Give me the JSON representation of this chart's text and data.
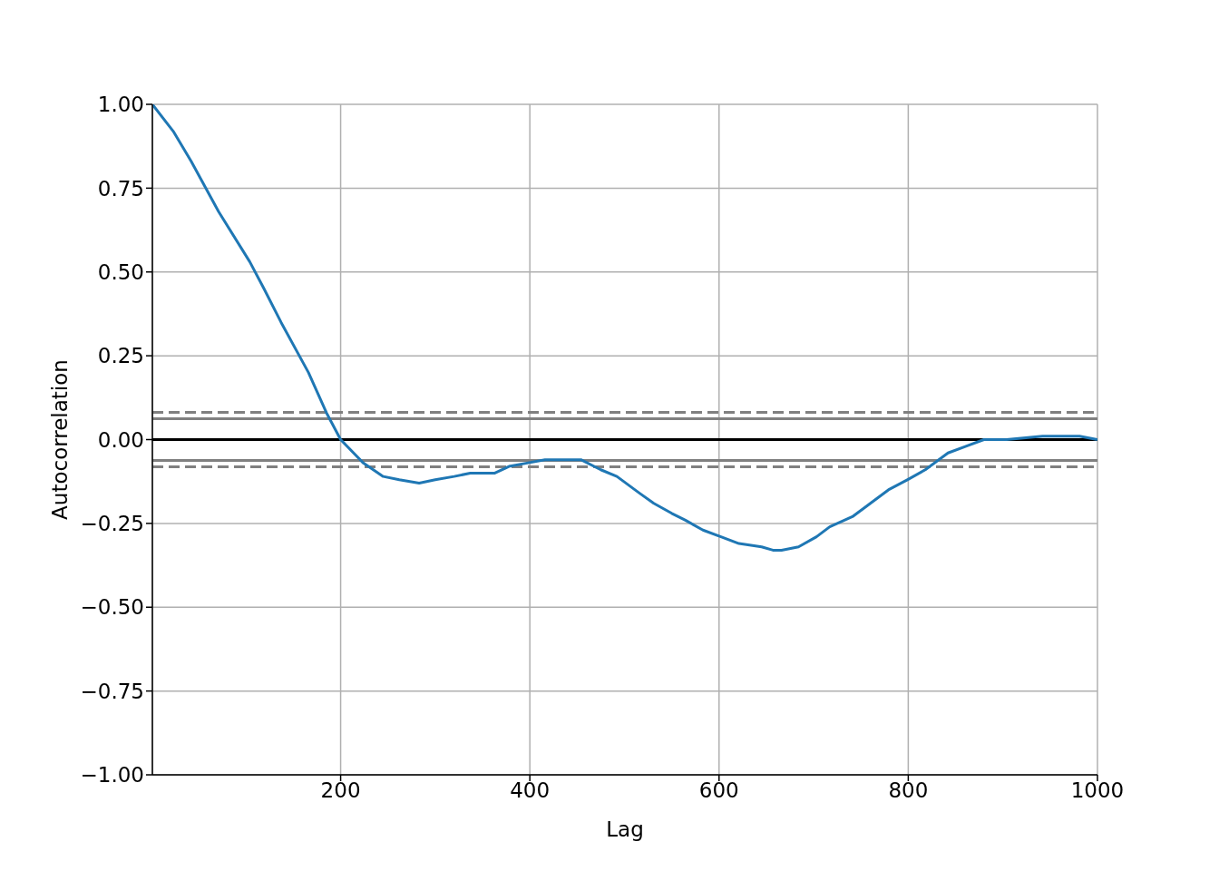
{
  "chart_data": {
    "type": "line",
    "xlabel": "Lag",
    "ylabel": "Autocorrelation",
    "x": [
      1,
      23,
      42,
      71,
      104,
      119,
      137,
      166,
      185,
      200,
      224,
      245,
      262,
      283,
      300,
      320,
      337,
      349,
      363,
      378,
      397,
      416,
      437,
      454,
      475,
      492,
      516,
      531,
      550,
      564,
      583,
      602,
      621,
      645,
      657,
      666,
      684,
      703,
      717,
      741,
      760,
      779,
      799,
      818,
      842,
      861,
      880,
      904,
      942,
      981,
      1000
    ],
    "series": [
      {
        "color": "#1f77b4",
        "values": [
          1.0,
          0.92,
          0.83,
          0.68,
          0.53,
          0.45,
          0.35,
          0.2,
          0.08,
          0.0,
          -0.07,
          -0.11,
          -0.12,
          -0.13,
          -0.12,
          -0.11,
          -0.1,
          -0.1,
          -0.1,
          -0.08,
          -0.07,
          -0.06,
          -0.06,
          -0.06,
          -0.09,
          -0.11,
          -0.16,
          -0.19,
          -0.22,
          -0.24,
          -0.27,
          -0.29,
          -0.31,
          -0.32,
          -0.33,
          -0.33,
          -0.32,
          -0.29,
          -0.26,
          -0.23,
          -0.19,
          -0.15,
          -0.12,
          -0.09,
          -0.04,
          -0.02,
          0.0,
          0.0,
          0.01,
          0.01,
          0.0
        ]
      }
    ],
    "xlim": [
      1,
      1000
    ],
    "xticks": [
      200,
      400,
      600,
      800,
      1000
    ],
    "ylim": [
      -1,
      1
    ],
    "yticks": [
      {
        "value": -1,
        "label": "−1.00"
      },
      {
        "value": -0.75,
        "label": "−0.75"
      },
      {
        "value": -0.5,
        "label": "−0.50"
      },
      {
        "value": -0.25,
        "label": "−0.25"
      },
      {
        "value": 0,
        "label": "0.00"
      },
      {
        "value": 0.25,
        "label": "0.25"
      },
      {
        "value": 0.5,
        "label": "0.50"
      },
      {
        "value": 0.75,
        "label": "0.75"
      },
      {
        "value": 1,
        "label": "1.00"
      }
    ],
    "ref_lines": [
      {
        "axis": "y",
        "value": 0.0815,
        "color": "#808080",
        "line_style": "dashed"
      },
      {
        "axis": "y",
        "value": 0.062,
        "color": "#808080",
        "line_style": "solid"
      },
      {
        "axis": "y",
        "value": 0,
        "color": "#000000",
        "line_style": "solid"
      },
      {
        "axis": "y",
        "value": -0.062,
        "color": "#808080",
        "line_style": "solid"
      },
      {
        "axis": "y",
        "value": -0.0815,
        "color": "#808080",
        "line_style": "dashed"
      }
    ],
    "grid": true
  }
}
